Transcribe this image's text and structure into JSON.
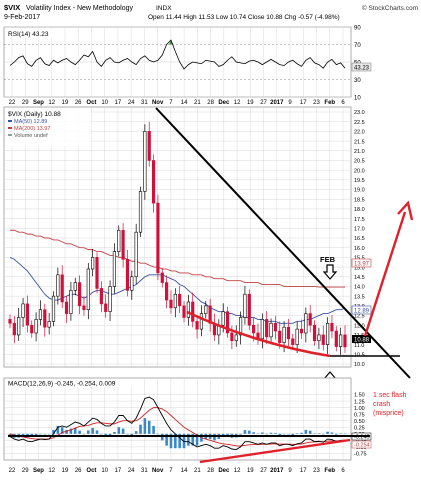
{
  "header": {
    "ticker": "$VIX",
    "name": "Volatility Index - New Methodology",
    "exchange": "INDX",
    "date": "9-Feb-2017",
    "watermark": "© StockCharts.com",
    "ohlc": "Open 11.44  High 11.53  Low 10.74  Close 10.88  Chg -0.57 (-4.98%)"
  },
  "chart_data": [
    {
      "type": "line",
      "panel": "rsi",
      "legend": [
        "RSI(14) 43.23"
      ],
      "ylim": [
        10,
        90
      ],
      "y_ticks": [
        10,
        30,
        50,
        70,
        90
      ],
      "value_badge": "43.23",
      "values": [
        46,
        50,
        55,
        57,
        48,
        45,
        52,
        55,
        48,
        46,
        52,
        49,
        52,
        54,
        50,
        47,
        52,
        58,
        56,
        62,
        50,
        45,
        52,
        55,
        50,
        49,
        52,
        54,
        50,
        47,
        54,
        57,
        52,
        50,
        52,
        58,
        70,
        75,
        62,
        50,
        42,
        47,
        50,
        49,
        48,
        52,
        51,
        50,
        45,
        47,
        52,
        56,
        50,
        49,
        48,
        51,
        52,
        50,
        47,
        50,
        53,
        50,
        47,
        46,
        50,
        52,
        48,
        45,
        52,
        55,
        49,
        47,
        43,
        50,
        53,
        47,
        49,
        43
      ]
    },
    {
      "type": "candlestick",
      "panel": "price",
      "legend": [
        "$VIX (Daily) 10.88",
        "MA(50) 12.89",
        "MA(200) 13.97",
        "Volume undef"
      ],
      "ylim": [
        10.0,
        23.0
      ],
      "y_ticks": [
        10.0,
        10.5,
        11.0,
        11.5,
        12.0,
        12.5,
        13.0,
        13.5,
        14.0,
        14.5,
        15.0,
        15.5,
        16.0,
        16.5,
        17.0,
        17.5,
        18.0,
        18.5,
        19.0,
        19.5,
        20.0,
        20.5,
        21.0,
        21.5,
        22.0,
        22.5,
        23.0
      ],
      "x_labels": [
        "22",
        "29",
        "Sep",
        "12",
        "19",
        "26",
        "Oct",
        "10",
        "17",
        "24",
        "31",
        "Nov",
        "7",
        "14",
        "21",
        "28",
        "Dec",
        "12",
        "19",
        "27",
        "2017",
        "9",
        "17",
        "23",
        "Feb",
        "6"
      ],
      "badges": {
        "ma200": "13.97",
        "ma50": "12.89",
        "close": "10.88"
      },
      "closes": [
        12.1,
        11.5,
        12.4,
        13.1,
        12.0,
        11.6,
        12.3,
        12.8,
        11.9,
        12.2,
        13.5,
        14.6,
        13.2,
        12.6,
        13.8,
        14.2,
        13.0,
        12.8,
        14.9,
        15.5,
        13.9,
        13.1,
        12.7,
        14.0,
        15.8,
        16.9,
        15.4,
        13.8,
        14.5,
        16.8,
        18.9,
        22.0,
        20.5,
        18.3,
        14.7,
        14.2,
        13.3,
        12.9,
        13.6,
        13.0,
        12.4,
        13.2,
        12.2,
        11.8,
        12.6,
        13.0,
        12.1,
        11.5,
        12.0,
        12.7,
        11.6,
        11.2,
        11.5,
        12.4,
        13.6,
        12.0,
        11.6,
        11.3,
        12.3,
        11.4,
        12.1,
        11.7,
        11.1,
        11.9,
        11.3,
        11.0,
        11.8,
        11.6,
        12.6,
        12.0,
        11.2,
        11.5,
        11.0,
        12.1,
        11.7,
        10.9,
        11.5,
        10.88
      ],
      "ma50": [
        15.5,
        15.4,
        15.2,
        15.0,
        14.8,
        14.5,
        14.2,
        13.9,
        13.6,
        13.4,
        13.3,
        13.3,
        13.4,
        13.5,
        13.6,
        13.6,
        13.5,
        13.4,
        13.5,
        13.7,
        13.8,
        13.8,
        13.7,
        13.6,
        13.6,
        13.7,
        13.8,
        13.9,
        14.0,
        14.1,
        14.3,
        14.5,
        14.6,
        14.6,
        14.6,
        14.6,
        14.5,
        14.4,
        14.3,
        14.1,
        14.0,
        13.8,
        13.6,
        13.4,
        13.2,
        13.1,
        12.9,
        12.8,
        12.7,
        12.7,
        12.6,
        12.6,
        12.5,
        12.5,
        12.4,
        12.4,
        12.4,
        12.3,
        12.3,
        12.2,
        12.2,
        12.2,
        12.1,
        12.1,
        12.1,
        12.1,
        12.2,
        12.2,
        12.3,
        12.3,
        12.4,
        12.5,
        12.6,
        12.6,
        12.7,
        12.8,
        12.8,
        12.89
      ],
      "ma200": [
        16.9,
        16.9,
        16.8,
        16.8,
        16.7,
        16.7,
        16.6,
        16.6,
        16.5,
        16.5,
        16.4,
        16.4,
        16.3,
        16.2,
        16.2,
        16.1,
        16.0,
        16.0,
        15.9,
        15.9,
        15.8,
        15.8,
        15.7,
        15.6,
        15.6,
        15.5,
        15.5,
        15.4,
        15.3,
        15.3,
        15.2,
        15.2,
        15.1,
        15.0,
        15.0,
        14.9,
        14.9,
        14.8,
        14.8,
        14.7,
        14.7,
        14.7,
        14.6,
        14.6,
        14.6,
        14.5,
        14.5,
        14.4,
        14.4,
        14.4,
        14.3,
        14.3,
        14.3,
        14.3,
        14.2,
        14.2,
        14.2,
        14.2,
        14.1,
        14.1,
        14.1,
        14.1,
        14.1,
        14.0,
        14.0,
        14.0,
        14.0,
        14.0,
        14.0,
        14.0,
        14.0,
        13.97,
        13.97,
        13.97,
        13.97,
        13.97,
        13.97,
        13.97
      ]
    },
    {
      "type": "line",
      "panel": "macd",
      "legend": [
        "MACD(12,26,9) -0.245, -0.254, 0.009"
      ],
      "ylim": [
        -1.0,
        1.75
      ],
      "y_ticks": [
        -0.75,
        -0.5,
        -0.25,
        0.0,
        0.25,
        0.5,
        0.75,
        1.0,
        1.25,
        1.5
      ],
      "badges": [
        "-0.245",
        "-0.254"
      ],
      "macd": [
        -0.1,
        -0.2,
        -0.25,
        -0.2,
        -0.28,
        -0.3,
        -0.25,
        -0.2,
        -0.22,
        -0.2,
        0.0,
        0.25,
        0.3,
        0.25,
        0.35,
        0.45,
        0.4,
        0.3,
        0.45,
        0.6,
        0.55,
        0.4,
        0.3,
        0.3,
        0.45,
        0.7,
        0.7,
        0.5,
        0.4,
        0.6,
        0.95,
        1.35,
        1.4,
        1.3,
        1.0,
        0.7,
        0.4,
        0.15,
        0.0,
        -0.15,
        -0.3,
        -0.3,
        -0.4,
        -0.5,
        -0.45,
        -0.4,
        -0.45,
        -0.55,
        -0.55,
        -0.45,
        -0.5,
        -0.58,
        -0.6,
        -0.5,
        -0.3,
        -0.3,
        -0.35,
        -0.4,
        -0.35,
        -0.4,
        -0.35,
        -0.35,
        -0.45,
        -0.4,
        -0.4,
        -0.45,
        -0.38,
        -0.35,
        -0.2,
        -0.2,
        -0.3,
        -0.28,
        -0.32,
        -0.2,
        -0.22,
        -0.3,
        -0.25,
        -0.245
      ],
      "signal": [
        0.0,
        -0.05,
        -0.1,
        -0.12,
        -0.15,
        -0.18,
        -0.2,
        -0.2,
        -0.2,
        -0.2,
        -0.15,
        -0.05,
        0.05,
        0.1,
        0.15,
        0.22,
        0.28,
        0.3,
        0.32,
        0.38,
        0.42,
        0.42,
        0.4,
        0.38,
        0.38,
        0.45,
        0.5,
        0.5,
        0.48,
        0.5,
        0.6,
        0.75,
        0.9,
        1.0,
        1.0,
        0.95,
        0.85,
        0.7,
        0.55,
        0.4,
        0.25,
        0.15,
        0.05,
        -0.05,
        -0.15,
        -0.2,
        -0.25,
        -0.3,
        -0.35,
        -0.38,
        -0.4,
        -0.43,
        -0.46,
        -0.47,
        -0.44,
        -0.42,
        -0.41,
        -0.41,
        -0.4,
        -0.4,
        -0.39,
        -0.38,
        -0.39,
        -0.39,
        -0.39,
        -0.4,
        -0.4,
        -0.39,
        -0.35,
        -0.32,
        -0.31,
        -0.3,
        -0.3,
        -0.28,
        -0.27,
        -0.27,
        -0.26,
        -0.254
      ]
    }
  ],
  "annotations": {
    "feb_label": "FEB",
    "flash_crash": "1 sec flash crash (misprice)"
  },
  "colors": {
    "rsi_line": "#000000",
    "rsi_fill": "#3a8f3a",
    "bear_candle": "#d0103a",
    "bull_candle": "#000000",
    "ma50": "#3a4fa0",
    "ma200": "#c04040",
    "trendline": "#000000",
    "annotation_red": "#e0202a",
    "macd_hist": "#3a86c8",
    "grid": "#cfcfcf"
  }
}
